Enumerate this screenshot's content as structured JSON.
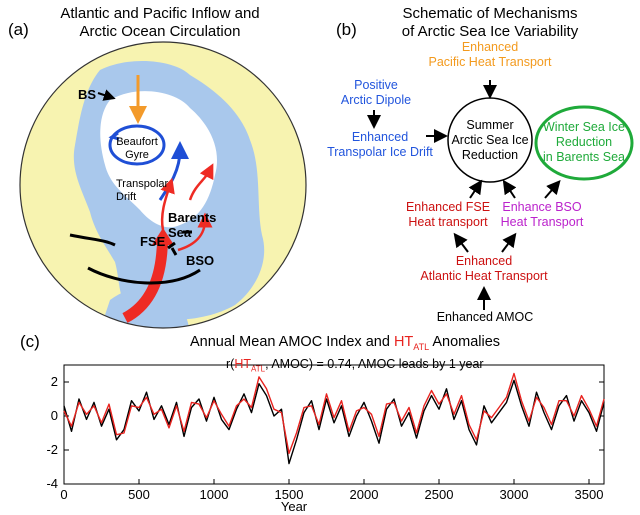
{
  "panel_a": {
    "label": "(a)",
    "title_line1": "Atlantic and Pacific Inflow and",
    "title_line2": "Arctic Ocean  Circulation",
    "map_labels": {
      "bs": "BS",
      "beaufort_line1": "Beaufort",
      "beaufort_line2": "Gyre",
      "transpolar_line1": "Transpolar",
      "transpolar_line2": "Drift",
      "barents_line1": "Barents",
      "barents_line2": "Sea",
      "fse": "FSE",
      "bso": "BSO"
    },
    "colors": {
      "land": "#f7f3b0",
      "ocean": "#a9c8ec",
      "ice": "#ffffff",
      "atlantic_inflow": "#ee2b24",
      "pacific_inflow": "#f39a2a",
      "gyre": "#1f4fd6"
    }
  },
  "panel_b": {
    "label": "(b)",
    "title_line1": "Schematic of Mechanisms",
    "title_line2": "of Arctic Sea Ice Variability",
    "nodes": {
      "pacific_line1": "Enhanced",
      "pacific_line2": "Pacific Heat Transport",
      "dipole_line1": "Positive",
      "dipole_line2": "Arctic Dipole",
      "transpolar_line1": "Enhanced",
      "transpolar_line2": "Transpolar Ice Drift",
      "summer_line1": "Summer",
      "summer_line2": "Arctic Sea Ice",
      "summer_line3": "Reduction",
      "winter_line1": "Winter Sea Ice",
      "winter_line2": "Reduction",
      "winter_line3": "in Barents Sea",
      "fse_line1": "Enhanced FSE",
      "fse_line2": "Heat transport",
      "bso_line1": "Enhance BSO",
      "bso_line2": "Heat Transport",
      "atlantic_line1": "Enhanced",
      "atlantic_line2": "Atlantic Heat Transport",
      "amoc": "Enhanced AMOC"
    },
    "colors": {
      "pacific": "#f39a1e",
      "dipole": "#2255dd",
      "fse": "#cc1111",
      "bso": "#bb22cc",
      "atlantic": "#cc1111",
      "winter_ring": "#1faa3a"
    }
  },
  "panel_c": {
    "label": "(c)",
    "title_prefix": "Annual Mean AMOC Index and ",
    "title_ht": "HT",
    "title_sub": "ATL",
    "title_suffix": " Anomalies",
    "annot_r": "r(",
    "annot_ht": "HT",
    "annot_sub": "ATL",
    "annot_rest": ", AMOC) = 0.74,  AMOC leads by 1 year"
  },
  "chart_data": {
    "type": "line",
    "title": "Annual Mean AMOC Index and HTATL Anomalies",
    "xlabel": "Year",
    "ylabel": "",
    "xlim": [
      0,
      3600
    ],
    "ylim": [
      -4,
      3
    ],
    "xticks": [
      0,
      500,
      1000,
      1500,
      2000,
      2500,
      3000,
      3500
    ],
    "yticks": [
      -4,
      -2,
      0,
      2
    ],
    "series": [
      {
        "name": "AMOC",
        "color": "#000000",
        "x": [
          0,
          50,
          100,
          150,
          200,
          250,
          300,
          350,
          400,
          450,
          500,
          550,
          600,
          650,
          700,
          750,
          800,
          850,
          900,
          950,
          1000,
          1050,
          1100,
          1150,
          1200,
          1250,
          1300,
          1350,
          1400,
          1450,
          1500,
          1550,
          1600,
          1650,
          1700,
          1750,
          1800,
          1850,
          1900,
          1950,
          2000,
          2050,
          2100,
          2150,
          2200,
          2250,
          2300,
          2350,
          2400,
          2450,
          2500,
          2550,
          2600,
          2650,
          2700,
          2750,
          2800,
          2850,
          2900,
          2950,
          3000,
          3050,
          3100,
          3150,
          3200,
          3250,
          3300,
          3350,
          3400,
          3450,
          3500,
          3550,
          3600
        ],
        "values": [
          0.6,
          -0.9,
          1.0,
          -0.2,
          0.8,
          -0.6,
          0.4,
          -1.4,
          -0.8,
          0.9,
          0.3,
          1.4,
          -0.2,
          0.6,
          -0.5,
          0.8,
          -1.2,
          0.5,
          1.0,
          -0.3,
          1.1,
          -0.2,
          -0.8,
          0.4,
          1.3,
          0.2,
          1.9,
          1.2,
          0.0,
          0.4,
          -2.8,
          -1.4,
          0.2,
          0.9,
          -0.8,
          1.0,
          -0.4,
          0.6,
          -1.2,
          0.0,
          0.8,
          -0.3,
          -1.6,
          0.4,
          1.0,
          -0.6,
          0.2,
          -1.3,
          0.3,
          1.2,
          0.4,
          1.6,
          -0.2,
          0.9,
          -0.8,
          -1.7,
          0.6,
          -0.4,
          0.2,
          0.8,
          2.1,
          0.6,
          -0.6,
          1.4,
          0.2,
          -0.8,
          0.6,
          1.2,
          -0.3,
          0.9,
          0.2,
          -0.9,
          0.8
        ]
      },
      {
        "name": "HTATL",
        "color": "#e8231f",
        "x": [
          0,
          50,
          100,
          150,
          200,
          250,
          300,
          350,
          400,
          450,
          500,
          550,
          600,
          650,
          700,
          750,
          800,
          850,
          900,
          950,
          1000,
          1050,
          1100,
          1150,
          1200,
          1250,
          1300,
          1350,
          1400,
          1450,
          1500,
          1550,
          1600,
          1650,
          1700,
          1750,
          1800,
          1850,
          1900,
          1950,
          2000,
          2050,
          2100,
          2150,
          2200,
          2250,
          2300,
          2350,
          2400,
          2450,
          2500,
          2550,
          2600,
          2650,
          2700,
          2750,
          2800,
          2850,
          2900,
          2950,
          3000,
          3050,
          3100,
          3150,
          3200,
          3250,
          3300,
          3350,
          3400,
          3450,
          3500,
          3550,
          3600
        ],
        "values": [
          0.3,
          -0.6,
          0.8,
          0.1,
          0.6,
          -0.4,
          0.7,
          -1.1,
          -1.0,
          0.6,
          0.5,
          1.1,
          0.1,
          0.4,
          -0.7,
          0.6,
          -0.9,
          0.8,
          0.7,
          -0.1,
          0.9,
          0.1,
          -0.6,
          0.6,
          1.0,
          0.5,
          2.3,
          1.6,
          0.4,
          0.2,
          -2.2,
          -1.0,
          0.5,
          0.6,
          -0.5,
          1.3,
          -0.1,
          0.9,
          -0.9,
          0.3,
          0.5,
          0.1,
          -1.2,
          0.7,
          0.8,
          -0.3,
          0.5,
          -1.0,
          0.6,
          1.5,
          0.7,
          1.3,
          0.1,
          1.2,
          -0.5,
          -1.4,
          0.3,
          -0.1,
          0.5,
          1.1,
          2.5,
          0.9,
          -0.3,
          1.1,
          0.5,
          -0.5,
          0.9,
          0.9,
          0.0,
          1.2,
          0.4,
          -0.6,
          1.0
        ]
      }
    ]
  }
}
